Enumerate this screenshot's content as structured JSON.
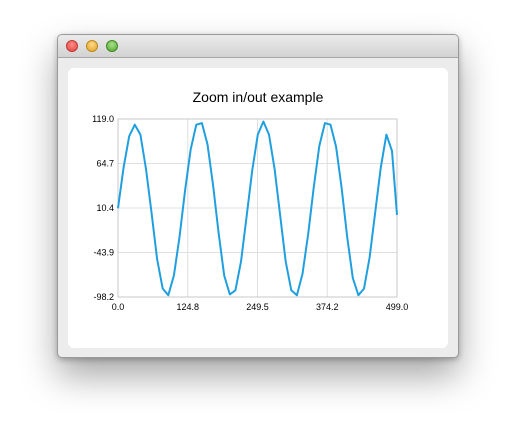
{
  "window": {
    "title": ""
  },
  "colors": {
    "series": "#209fdf",
    "grid": "#e0e0e0",
    "axis": "#c8c8c8"
  },
  "chart_data": {
    "type": "line",
    "title": "Zoom in/out example",
    "xlabel": "",
    "ylabel": "",
    "xlim": [
      0.0,
      499.0
    ],
    "ylim": [
      -98.2,
      119.0
    ],
    "x_ticks": [
      "0.0",
      "124.8",
      "249.5",
      "374.2",
      "499.0"
    ],
    "y_ticks": [
      "119.0",
      "64.7",
      "10.4",
      "-43.9",
      "-98.2"
    ],
    "grid": true,
    "legend": "none",
    "series": [
      {
        "x": [
          0,
          10,
          20,
          30,
          40,
          50,
          60,
          70,
          80,
          90,
          100,
          110,
          120,
          130,
          140,
          150,
          160,
          170,
          180,
          190,
          200,
          210,
          220,
          230,
          240,
          250,
          260,
          270,
          280,
          290,
          300,
          310,
          320,
          330,
          340,
          350,
          360,
          370,
          380,
          390,
          400,
          410,
          420,
          430,
          440,
          450,
          460,
          470,
          480,
          490,
          499
        ],
        "y": [
          10,
          60,
          98,
          112,
          100,
          58,
          5,
          -52,
          -88,
          -96,
          -72,
          -25,
          32,
          82,
          112,
          114,
          88,
          38,
          -20,
          -72,
          -95,
          -90,
          -55,
          0,
          56,
          100,
          116,
          100,
          58,
          2,
          -55,
          -90,
          -96,
          -70,
          -22,
          35,
          86,
          114,
          112,
          85,
          35,
          -25,
          -75,
          -96,
          -88,
          -50,
          5,
          60,
          100,
          80,
          2
        ]
      }
    ]
  }
}
